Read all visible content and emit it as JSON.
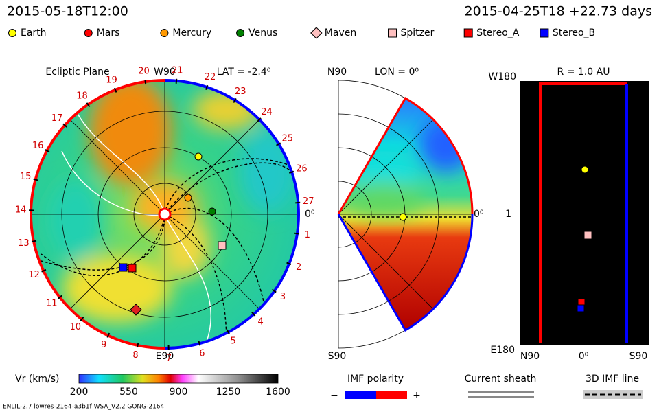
{
  "header": {
    "timestamp": "2015-05-18T12:00",
    "run_info": "2015-04-25T18 +22.73 days"
  },
  "legend": [
    {
      "label": "Earth",
      "color": "#ffff00",
      "shape": "circle"
    },
    {
      "label": "Mars",
      "color": "#ff0000",
      "shape": "circle"
    },
    {
      "label": "Mercury",
      "color": "#ff9900",
      "shape": "circle"
    },
    {
      "label": "Venus",
      "color": "#008000",
      "shape": "circle"
    },
    {
      "label": "Maven",
      "color": "#ffc0c0",
      "shape": "diamond"
    },
    {
      "label": "Spitzer",
      "color": "#ffc0c0",
      "shape": "square"
    },
    {
      "label": "Stereo_A",
      "color": "#ff0000",
      "shape": "square"
    },
    {
      "label": "Stereo_B",
      "color": "#0000ff",
      "shape": "square"
    }
  ],
  "ecliptic": {
    "title": "Ecliptic Plane",
    "top": "W90",
    "lat": "LAT = -2.4⁰",
    "bottom": "E90",
    "right": "0⁰",
    "clock": [
      "1",
      "2",
      "3",
      "4",
      "5",
      "6",
      "7",
      "8",
      "9",
      "10",
      "11",
      "12",
      "13",
      "14",
      "15",
      "16",
      "17",
      "18",
      "19",
      "20",
      "21",
      "22",
      "23",
      "24",
      "25",
      "26",
      "27"
    ]
  },
  "meridional": {
    "top": "N90",
    "lon": "LON = 0⁰",
    "bottom": "S90",
    "right": "0⁰"
  },
  "radial": {
    "top": "W180",
    "radius": "R = 1.0 AU",
    "middle": "1",
    "bottom": "E180",
    "x_labels": [
      "N90",
      "0⁰",
      "S90"
    ]
  },
  "colorbar": {
    "label": "Vr (km/s)",
    "ticks": [
      "200",
      "550",
      "900",
      "1250",
      "1600"
    ]
  },
  "imf": {
    "title": "IMF polarity",
    "minus": "−",
    "plus": "+"
  },
  "sheath": "Current sheath",
  "imf_line": "3D IMF line",
  "footer": "ENLIL-2.7 lowres-2164-a3b1f WSA_V2.2 GONG-2164"
}
